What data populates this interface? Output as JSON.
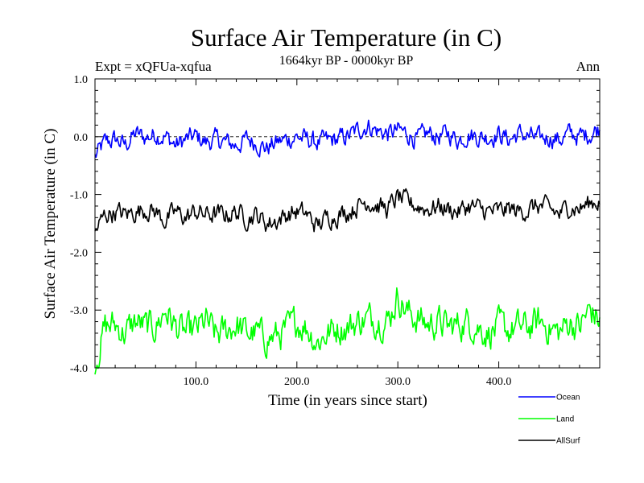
{
  "chart_data": {
    "type": "line",
    "title": "Surface Air Temperature (in C)",
    "subtitle": "1664kyr BP - 0000kyr BP",
    "left_label": "Expt = xQFUa-xqfua",
    "right_label": "Ann",
    "xlabel": "Time (in years since start)",
    "ylabel": "Surface Air Temperature (in C)",
    "xlim": [
      0,
      500
    ],
    "ylim": [
      -4.0,
      1.0
    ],
    "x_ticks": [
      100,
      200,
      300,
      400
    ],
    "x_tick_labels": [
      "100.0",
      "200.0",
      "300.0",
      "400.0"
    ],
    "y_ticks": [
      1.0,
      0.0,
      -1.0,
      -2.0,
      -3.0,
      -4.0
    ],
    "y_tick_labels": [
      "1.0",
      "0.0",
      "-1.0",
      "-2.0",
      "-3.0",
      "-4.0"
    ],
    "reference_line": 0.0,
    "series": [
      {
        "name": "Ocean",
        "color": "#0000ff",
        "x": [
          0,
          10,
          20,
          30,
          40,
          50,
          60,
          70,
          80,
          90,
          100,
          110,
          120,
          130,
          140,
          150,
          160,
          170,
          180,
          190,
          200,
          210,
          220,
          230,
          240,
          250,
          260,
          270,
          280,
          290,
          300,
          310,
          320,
          330,
          340,
          350,
          360,
          370,
          380,
          390,
          400,
          410,
          420,
          430,
          440,
          450,
          460,
          470,
          480,
          490,
          500
        ],
        "values": [
          -0.35,
          -0.1,
          -0.05,
          -0.15,
          0.05,
          -0.02,
          0.05,
          0.0,
          -0.15,
          -0.05,
          0.0,
          -0.1,
          -0.05,
          -0.1,
          -0.15,
          -0.05,
          -0.1,
          -0.2,
          -0.1,
          -0.05,
          0.0,
          -0.05,
          -0.1,
          -0.08,
          -0.05,
          0.0,
          0.1,
          0.2,
          0.1,
          0.05,
          0.1,
          0.05,
          -0.05,
          0.05,
          0.0,
          0.05,
          -0.05,
          0.05,
          0.0,
          0.0,
          0.05,
          -0.05,
          0.05,
          0.0,
          -0.05,
          0.0,
          -0.05,
          0.05,
          0.0,
          0.05,
          0.15
        ]
      },
      {
        "name": "Land",
        "color": "#00ff00",
        "x": [
          0,
          10,
          20,
          30,
          40,
          50,
          60,
          70,
          80,
          90,
          100,
          110,
          120,
          130,
          140,
          150,
          160,
          170,
          180,
          190,
          200,
          210,
          220,
          230,
          240,
          250,
          260,
          270,
          280,
          290,
          300,
          310,
          320,
          330,
          340,
          350,
          360,
          370,
          380,
          390,
          400,
          410,
          420,
          430,
          440,
          450,
          460,
          470,
          480,
          490,
          500
        ],
        "values": [
          -3.9,
          -3.3,
          -3.25,
          -3.4,
          -3.2,
          -3.3,
          -3.3,
          -3.0,
          -3.3,
          -3.4,
          -3.35,
          -3.2,
          -3.45,
          -3.35,
          -3.25,
          -3.4,
          -3.4,
          -3.5,
          -3.45,
          -3.35,
          -3.2,
          -3.3,
          -3.55,
          -3.4,
          -3.3,
          -3.3,
          -3.2,
          -3.15,
          -3.15,
          -3.2,
          -2.75,
          -3.05,
          -3.15,
          -3.25,
          -3.2,
          -3.3,
          -3.25,
          -3.2,
          -3.3,
          -3.4,
          -3.3,
          -3.35,
          -3.3,
          -3.3,
          -3.2,
          -3.3,
          -3.4,
          -3.2,
          -3.3,
          -3.0,
          -3.2
        ]
      },
      {
        "name": "AllSurf",
        "color": "#000000",
        "x": [
          0,
          10,
          20,
          30,
          40,
          50,
          60,
          70,
          80,
          90,
          100,
          110,
          120,
          130,
          140,
          150,
          160,
          170,
          180,
          190,
          200,
          210,
          220,
          230,
          240,
          250,
          260,
          270,
          280,
          290,
          300,
          310,
          320,
          330,
          340,
          350,
          360,
          370,
          380,
          390,
          400,
          410,
          420,
          430,
          440,
          450,
          460,
          470,
          480,
          490,
          500
        ],
        "values": [
          -1.65,
          -1.35,
          -1.3,
          -1.35,
          -1.3,
          -1.25,
          -1.3,
          -1.45,
          -1.3,
          -1.4,
          -1.3,
          -1.35,
          -1.35,
          -1.35,
          -1.3,
          -1.4,
          -1.35,
          -1.5,
          -1.45,
          -1.35,
          -1.3,
          -1.35,
          -1.55,
          -1.4,
          -1.35,
          -1.3,
          -1.2,
          -1.1,
          -1.2,
          -1.25,
          -1.05,
          -1.15,
          -1.2,
          -1.25,
          -1.2,
          -1.25,
          -1.3,
          -1.2,
          -1.25,
          -1.3,
          -1.3,
          -1.25,
          -1.3,
          -1.25,
          -1.2,
          -1.25,
          -1.35,
          -1.2,
          -1.25,
          -1.15,
          -1.1
        ]
      }
    ]
  }
}
